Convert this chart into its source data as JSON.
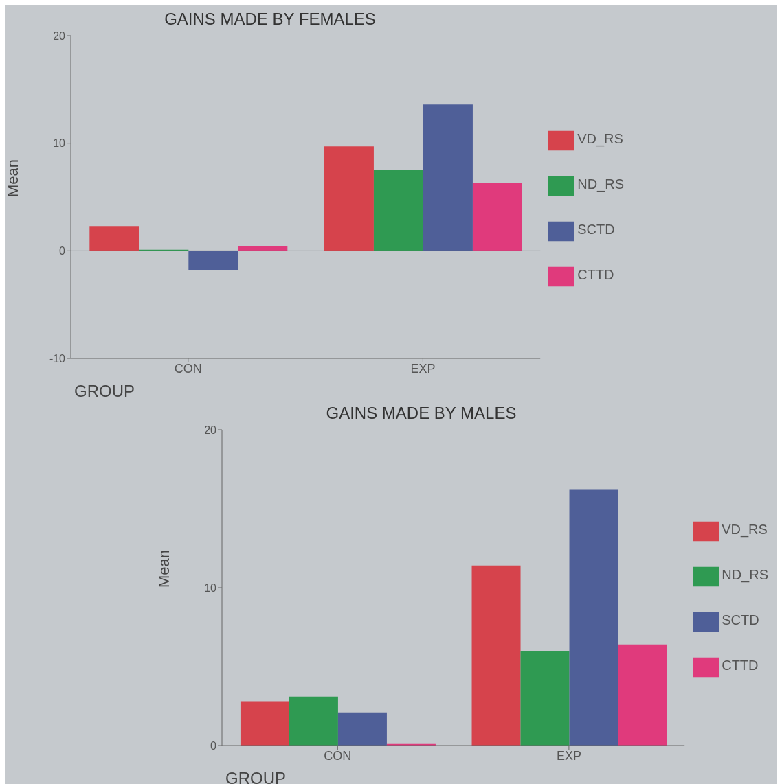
{
  "chart_data": [
    {
      "type": "bar",
      "title": "GAINS MADE BY FEMALES",
      "xlabel": "GROUP",
      "ylabel": "Mean",
      "categories": [
        "CON",
        "EXP"
      ],
      "ylim": [
        -10,
        20
      ],
      "yticks": [
        -10,
        0,
        10,
        20
      ],
      "legend": "right",
      "series": [
        {
          "name": "VD_RS",
          "color": "#d6434c",
          "values": [
            2.3,
            9.7
          ]
        },
        {
          "name": "ND_RS",
          "color": "#2f9a52",
          "values": [
            0.1,
            7.5
          ]
        },
        {
          "name": "SCTD",
          "color": "#4f5f98",
          "values": [
            -1.8,
            13.6
          ]
        },
        {
          "name": "CTTD",
          "color": "#e03a7c",
          "values": [
            0.4,
            6.3
          ]
        }
      ]
    },
    {
      "type": "bar",
      "title": "GAINS MADE BY MALES",
      "xlabel": "GROUP",
      "ylabel": "Mean",
      "categories": [
        "CON",
        "EXP"
      ],
      "ylim": [
        0,
        20
      ],
      "yticks": [
        0,
        10,
        20
      ],
      "legend": "right",
      "series": [
        {
          "name": "VD_RS",
          "color": "#d6434c",
          "values": [
            2.8,
            11.4
          ]
        },
        {
          "name": "ND_RS",
          "color": "#2f9a52",
          "values": [
            3.1,
            6.0
          ]
        },
        {
          "name": "SCTD",
          "color": "#4f5f98",
          "values": [
            2.1,
            16.2
          ]
        },
        {
          "name": "CTTD",
          "color": "#e03a7c",
          "values": [
            0.1,
            6.4
          ]
        }
      ]
    }
  ]
}
